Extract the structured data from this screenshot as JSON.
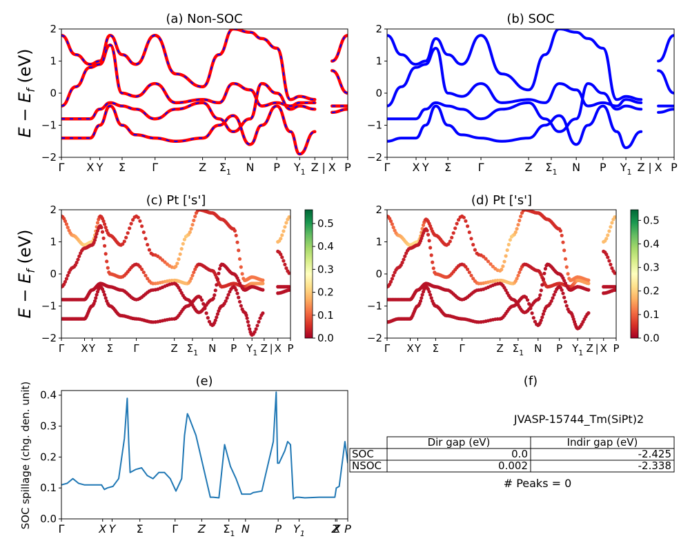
{
  "panels": {
    "a": {
      "title": "(a) Non-SOC",
      "ylabel": "E − E",
      "ylabel_sub": "f",
      "ylabel_unit": " (eV)",
      "ylim": [
        -2,
        2
      ],
      "yticks": [
        "−2",
        "−1",
        "0",
        "1",
        "2"
      ],
      "kticks": [
        {
          "pos": 0.0,
          "label": "Γ"
        },
        {
          "pos": 0.101,
          "label": "X"
        },
        {
          "pos": 0.134,
          "label": "Y"
        },
        {
          "pos": 0.212,
          "label": "Σ"
        },
        {
          "pos": 0.327,
          "label": "Γ"
        },
        {
          "pos": 0.493,
          "label": "Z"
        },
        {
          "pos": 0.572,
          "label": "Σ",
          "sub": "1"
        },
        {
          "pos": 0.659,
          "label": "N"
        },
        {
          "pos": 0.752,
          "label": "P"
        },
        {
          "pos": 0.832,
          "label": "Y",
          "sub": "1"
        },
        {
          "pos": 0.885,
          "label": "Z"
        },
        {
          "pos": 0.916,
          "label": "|"
        },
        {
          "pos": 0.945,
          "label": "X"
        },
        {
          "pos": 1.0,
          "label": "P"
        }
      ]
    },
    "b": {
      "title": "(b) SOC"
    },
    "c": {
      "title": "(c)  Pt ['s']",
      "colorbar_ticks": [
        "0.0",
        "0.1",
        "0.2",
        "0.3",
        "0.4",
        "0.5"
      ],
      "colorbar_max": 0.56
    },
    "d": {
      "title": "(d) Pt ['s']",
      "colorbar_ticks": [
        "0.0",
        "0.1",
        "0.2",
        "0.3",
        "0.4",
        "0.5"
      ],
      "colorbar_max": 0.545
    },
    "e": {
      "title": "(e)",
      "ylabel": "SOC spillage (chg. den. unit)",
      "yticks": [
        "0.0",
        "0.1",
        "0.2",
        "0.3",
        "0.4"
      ],
      "ylim": [
        0,
        0.415
      ],
      "xticks": [
        {
          "pos": 0.0,
          "label": "Γ"
        },
        {
          "pos": 0.144,
          "label": "X"
        },
        {
          "pos": 0.177,
          "label": "Y"
        },
        {
          "pos": 0.274,
          "label": "Σ"
        },
        {
          "pos": 0.397,
          "label": "Γ"
        },
        {
          "pos": 0.49,
          "label": "Z"
        },
        {
          "pos": 0.585,
          "label": "Σ",
          "sub": "1"
        },
        {
          "pos": 0.643,
          "label": "N"
        },
        {
          "pos": 0.757,
          "label": "P"
        },
        {
          "pos": 0.83,
          "label": "Y",
          "sub": "1"
        },
        {
          "pos": 0.957,
          "label": "Z"
        },
        {
          "pos": 0.962,
          "label": "X"
        },
        {
          "pos": 1.0,
          "label": "P"
        }
      ],
      "line_color": "#1f77b4"
    },
    "f": {
      "title": "(f)",
      "material": "JVASP-15744_Tm(SiPt)2",
      "headers": [
        "Dir gap (eV)",
        "Indir gap (eV)"
      ],
      "rows": [
        {
          "label": "SOC",
          "dir": "0.0",
          "indir": "-2.425"
        },
        {
          "label": "NSOC",
          "dir": "0.002",
          "indir": "-2.338"
        }
      ],
      "peaks": "# Peaks = 0"
    }
  },
  "colors": {
    "nonsoc_line": "#ff0000",
    "nonsoc_dash": "#0000ff",
    "soc_line": "#0000ff"
  },
  "chart_data": [
    {
      "type": "line",
      "title": "(a) Non-SOC",
      "ylabel": "E − E_f (eV)",
      "ylim": [
        -2,
        2
      ],
      "x": [
        0,
        0.05,
        0.1,
        0.134,
        0.17,
        0.212,
        0.26,
        0.327,
        0.4,
        0.493,
        0.55,
        0.6,
        0.659,
        0.7,
        0.752,
        0.8,
        0.832,
        0.885,
        0.916,
        0.945,
        1.0
      ],
      "series": [
        {
          "values": [
            1.8,
            1.2,
            0.9,
            1.0,
            1.8,
            1.2,
            0.9,
            1.8,
            0.6,
            0.2,
            1.2,
            2.0,
            1.9,
            1.7,
            1.4,
            -0.2,
            -0.1,
            -0.2,
            null,
            1.0,
            1.8
          ]
        },
        {
          "values": [
            -0.4,
            0.2,
            0.8,
            0.9,
            1.5,
            0.0,
            -0.1,
            0.3,
            -0.3,
            -0.2,
            -0.3,
            0.3,
            0.1,
            -0.4,
            -0.3,
            -0.4,
            -0.3,
            -0.3,
            null,
            0.7,
            0.0
          ]
        },
        {
          "values": [
            -0.8,
            -0.8,
            -0.8,
            -0.5,
            -0.3,
            -0.4,
            -0.5,
            -0.8,
            -0.5,
            -0.3,
            -0.8,
            -1.2,
            -0.8,
            0.3,
            0.0,
            -0.5,
            -0.4,
            -0.5,
            null,
            -0.4,
            -0.4
          ]
        },
        {
          "values": [
            -1.4,
            -1.4,
            -1.4,
            -1.0,
            -0.4,
            -1.0,
            -1.3,
            -1.4,
            -1.5,
            -1.4,
            -1.0,
            -0.7,
            -1.6,
            -1.0,
            -0.4,
            -1.2,
            -1.9,
            -1.2,
            null,
            -0.6,
            -0.5
          ]
        }
      ]
    },
    {
      "type": "line",
      "title": "(b) SOC",
      "ylim": [
        -2,
        2
      ],
      "x": [
        0,
        0.05,
        0.1,
        0.134,
        0.17,
        0.212,
        0.26,
        0.327,
        0.4,
        0.493,
        0.55,
        0.6,
        0.659,
        0.7,
        0.752,
        0.8,
        0.832,
        0.885,
        0.916,
        0.945,
        1.0
      ],
      "series": [
        {
          "values": [
            1.8,
            1.2,
            0.9,
            1.0,
            1.7,
            1.2,
            0.9,
            1.8,
            0.6,
            0.1,
            1.2,
            2.0,
            1.9,
            1.7,
            1.4,
            -0.2,
            -0.1,
            -0.2,
            null,
            1.0,
            1.8
          ]
        },
        {
          "values": [
            -0.4,
            0.2,
            0.8,
            0.9,
            1.4,
            0.0,
            -0.1,
            0.3,
            -0.3,
            -0.2,
            -0.3,
            0.3,
            0.1,
            -0.4,
            -0.3,
            -0.4,
            -0.2,
            -0.3,
            null,
            0.7,
            0.0
          ]
        },
        {
          "values": [
            -0.8,
            -0.8,
            -0.8,
            -0.5,
            -0.3,
            -0.4,
            -0.5,
            -0.8,
            -0.5,
            -0.3,
            -0.8,
            -1.2,
            -0.8,
            0.3,
            0.0,
            -0.5,
            -0.4,
            -0.5,
            null,
            -0.4,
            -0.4
          ]
        },
        {
          "values": [
            -1.5,
            -1.4,
            -1.4,
            -1.0,
            -0.4,
            -1.0,
            -1.3,
            -1.4,
            -1.5,
            -1.4,
            -1.0,
            -0.7,
            -1.6,
            -1.0,
            -0.4,
            -1.2,
            -1.7,
            -1.2,
            null,
            -0.6,
            -0.5
          ]
        }
      ]
    },
    {
      "type": "scatter",
      "title": "(c)  Pt ['s']",
      "ylim": [
        -2,
        2
      ],
      "x": [
        0,
        0.05,
        0.1,
        0.134,
        0.17,
        0.212,
        0.26,
        0.327,
        0.4,
        0.493,
        0.55,
        0.6,
        0.659,
        0.7,
        0.752,
        0.8,
        0.832,
        0.885,
        0.916,
        0.945,
        1.0
      ],
      "series": [
        {
          "values": [
            1.8,
            1.2,
            0.9,
            1.0,
            1.8,
            1.2,
            0.9,
            1.8,
            0.6,
            0.2,
            1.2,
            2.0,
            1.9,
            1.7,
            1.4,
            -0.2,
            -0.1,
            -0.2,
            null,
            1.0,
            1.8
          ],
          "weights": [
            0.05,
            0.15,
            0.2,
            0.22,
            0.05,
            0.05,
            0.05,
            0.05,
            0.05,
            0.15,
            0.2,
            0.05,
            0.05,
            0.05,
            0.05,
            0.12,
            0.12,
            0.12,
            null,
            0.18,
            0.18
          ]
        },
        {
          "values": [
            -0.4,
            0.2,
            0.8,
            0.9,
            1.5,
            0.0,
            -0.1,
            0.3,
            -0.3,
            -0.2,
            -0.3,
            0.3,
            0.1,
            -0.4,
            -0.3,
            -0.4,
            -0.3,
            -0.3,
            null,
            0.7,
            0.0
          ],
          "weights": [
            0.03,
            0.03,
            0.03,
            0.03,
            0.03,
            0.08,
            0.08,
            0.03,
            0.12,
            0.18,
            0.18,
            0.03,
            0.03,
            0.05,
            0.05,
            0.05,
            0.15,
            0.15,
            null,
            0.03,
            0.03
          ]
        },
        {
          "values": [
            -0.8,
            -0.8,
            -0.8,
            -0.5,
            -0.3,
            -0.4,
            -0.5,
            -0.8,
            -0.5,
            -0.3,
            -0.8,
            -1.2,
            -0.8,
            0.3,
            0.0,
            -0.5,
            -0.4,
            -0.5,
            null,
            -0.4,
            -0.4
          ],
          "weights": [
            0.02,
            0.02,
            0.02,
            0.02,
            0.02,
            0.02,
            0.02,
            0.02,
            0.02,
            0.02,
            0.02,
            0.02,
            0.02,
            0.02,
            0.02,
            0.02,
            0.02,
            0.02,
            null,
            0.02,
            0.02
          ]
        },
        {
          "values": [
            -1.4,
            -1.4,
            -1.4,
            -1.0,
            -0.4,
            -1.0,
            -1.3,
            -1.4,
            -1.5,
            -1.4,
            -1.0,
            -0.7,
            -1.6,
            -1.0,
            -0.4,
            -1.2,
            -1.9,
            -1.2,
            null,
            -0.6,
            -0.5
          ],
          "weights": [
            0.02,
            0.02,
            0.02,
            0.02,
            0.02,
            0.02,
            0.02,
            0.02,
            0.02,
            0.02,
            0.02,
            0.02,
            0.02,
            0.02,
            0.02,
            0.02,
            0.02,
            0.02,
            null,
            0.02,
            0.02
          ]
        }
      ]
    },
    {
      "type": "scatter",
      "title": "(d) Pt ['s']",
      "ylim": [
        -2,
        2
      ],
      "x": [
        0,
        0.05,
        0.1,
        0.134,
        0.17,
        0.212,
        0.26,
        0.327,
        0.4,
        0.493,
        0.55,
        0.6,
        0.659,
        0.7,
        0.752,
        0.8,
        0.832,
        0.885,
        0.916,
        0.945,
        1.0
      ],
      "series": [
        {
          "values": [
            1.8,
            1.2,
            0.9,
            1.0,
            1.7,
            1.2,
            0.9,
            1.8,
            0.6,
            0.1,
            1.2,
            2.0,
            1.9,
            1.7,
            1.4,
            -0.2,
            -0.1,
            -0.2,
            null,
            1.0,
            1.8
          ],
          "weights": [
            0.05,
            0.15,
            0.2,
            0.22,
            0.05,
            0.05,
            0.05,
            0.05,
            0.05,
            0.15,
            0.2,
            0.05,
            0.05,
            0.05,
            0.05,
            0.12,
            0.12,
            0.12,
            null,
            0.18,
            0.18
          ]
        },
        {
          "values": [
            -0.4,
            0.2,
            0.8,
            0.9,
            1.4,
            0.0,
            -0.1,
            0.3,
            -0.3,
            -0.2,
            -0.3,
            0.3,
            0.1,
            -0.4,
            -0.3,
            -0.4,
            -0.2,
            -0.3,
            null,
            0.7,
            0.0
          ],
          "weights": [
            0.03,
            0.03,
            0.03,
            0.03,
            0.03,
            0.08,
            0.08,
            0.03,
            0.12,
            0.18,
            0.18,
            0.03,
            0.03,
            0.05,
            0.05,
            0.05,
            0.15,
            0.15,
            null,
            0.03,
            0.03
          ]
        },
        {
          "values": [
            -0.8,
            -0.8,
            -0.8,
            -0.5,
            -0.3,
            -0.4,
            -0.5,
            -0.8,
            -0.5,
            -0.3,
            -0.8,
            -1.2,
            -0.8,
            0.3,
            0.0,
            -0.5,
            -0.4,
            -0.5,
            null,
            -0.4,
            -0.4
          ],
          "weights": [
            0.02,
            0.02,
            0.02,
            0.02,
            0.02,
            0.02,
            0.02,
            0.02,
            0.02,
            0.02,
            0.02,
            0.02,
            0.02,
            0.02,
            0.02,
            0.02,
            0.02,
            0.02,
            null,
            0.02,
            0.02
          ]
        },
        {
          "values": [
            -1.5,
            -1.4,
            -1.4,
            -1.0,
            -0.4,
            -1.0,
            -1.3,
            -1.4,
            -1.5,
            -1.4,
            -1.0,
            -0.7,
            -1.6,
            -1.0,
            -0.4,
            -1.2,
            -1.7,
            -1.2,
            null,
            -0.6,
            -0.5
          ],
          "weights": [
            0.02,
            0.02,
            0.02,
            0.02,
            0.02,
            0.02,
            0.02,
            0.02,
            0.02,
            0.02,
            0.02,
            0.02,
            0.02,
            0.02,
            0.02,
            0.02,
            0.02,
            0.02,
            null,
            0.02,
            0.02
          ]
        }
      ]
    },
    {
      "type": "line",
      "title": "(e)",
      "ylabel": "SOC spillage (chg. den. unit)",
      "ylim": [
        0,
        0.415
      ],
      "x": [
        0,
        0.02,
        0.04,
        0.06,
        0.08,
        0.1,
        0.12,
        0.14,
        0.15,
        0.16,
        0.18,
        0.2,
        0.22,
        0.23,
        0.235,
        0.24,
        0.26,
        0.28,
        0.3,
        0.32,
        0.34,
        0.36,
        0.38,
        0.4,
        0.42,
        0.43,
        0.44,
        0.445,
        0.47,
        0.52,
        0.53,
        0.55,
        0.57,
        0.59,
        0.61,
        0.63,
        0.66,
        0.67,
        0.7,
        0.71,
        0.74,
        0.75,
        0.755,
        0.76,
        0.78,
        0.79,
        0.8,
        0.81,
        0.82,
        0.83,
        0.85,
        0.9,
        0.955,
        0.96,
        0.97,
        0.99,
        1.0
      ],
      "values": [
        0.11,
        0.115,
        0.13,
        0.115,
        0.11,
        0.11,
        0.11,
        0.11,
        0.095,
        0.1,
        0.105,
        0.13,
        0.26,
        0.39,
        0.25,
        0.15,
        0.16,
        0.165,
        0.14,
        0.13,
        0.15,
        0.15,
        0.13,
        0.09,
        0.13,
        0.27,
        0.34,
        0.33,
        0.27,
        0.07,
        0.07,
        0.068,
        0.24,
        0.17,
        0.13,
        0.08,
        0.08,
        0.085,
        0.09,
        0.13,
        0.25,
        0.41,
        0.18,
        0.18,
        0.22,
        0.25,
        0.24,
        0.065,
        0.07,
        0.07,
        0.068,
        0.07,
        0.07,
        0.1,
        0.105,
        0.25,
        0.18
      ]
    },
    {
      "type": "table",
      "title": "(f)",
      "columns": [
        "Dir gap (eV)",
        "Indir gap (eV)"
      ],
      "rows": [
        [
          "SOC",
          "0.0",
          "-2.425"
        ],
        [
          "NSOC",
          "0.002",
          "-2.338"
        ]
      ]
    }
  ]
}
